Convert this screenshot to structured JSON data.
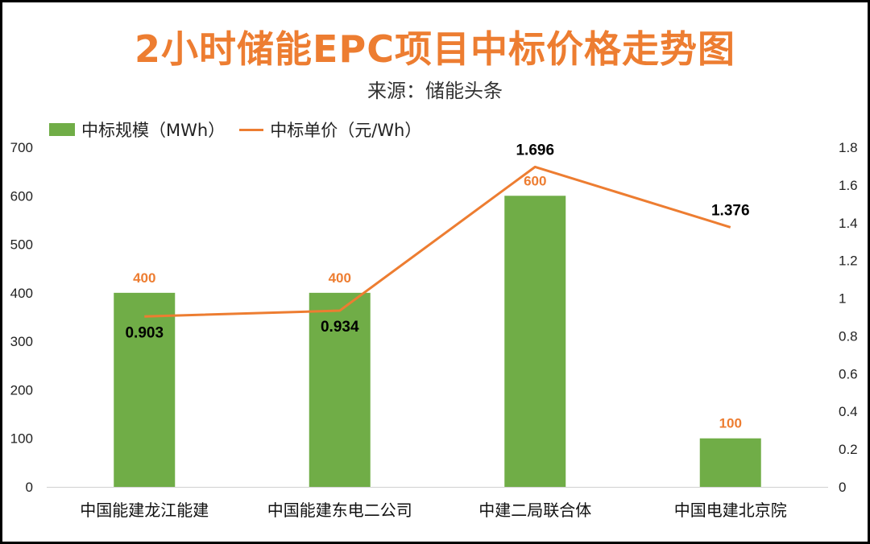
{
  "header": {
    "title": "2小时储能EPC项目中标价格走势图",
    "subtitle": "来源：储能头条"
  },
  "colors": {
    "title": "#ED7D31",
    "bar": "#70AD47",
    "line": "#ED7D31",
    "bar_label": "#ED7D31",
    "price_label": "#000000"
  },
  "chart_data": {
    "type": "bar",
    "title": "2小时储能EPC项目中标价格走势图",
    "subtitle": "来源：储能头条",
    "categories": [
      "中国能建龙江能建",
      "中国能建东电二公司",
      "中建二局联合体",
      "中国电建北京院"
    ],
    "series": [
      {
        "name": "中标规模（MWh）",
        "type": "bar",
        "axis": "left",
        "values": [
          400,
          400,
          600,
          100
        ]
      },
      {
        "name": "中标单价（元/Wh）",
        "type": "line",
        "axis": "right",
        "values": [
          0.903,
          0.934,
          1.696,
          1.376
        ]
      }
    ],
    "bar_labels": [
      "400",
      "400",
      "600",
      "100"
    ],
    "line_labels": [
      "0.903",
      "0.934",
      "1.696",
      "1.376"
    ],
    "y_left": {
      "ylim": [
        0,
        700
      ],
      "ticks": [
        "0",
        "100",
        "200",
        "300",
        "400",
        "500",
        "600",
        "700"
      ]
    },
    "y_right": {
      "ylim": [
        0,
        1.8
      ],
      "ticks": [
        "0",
        "0.2",
        "0.4",
        "0.6",
        "0.8",
        "1",
        "1.2",
        "1.4",
        "1.6",
        "1.8"
      ]
    },
    "legend_position": "top-left",
    "grid": false
  }
}
